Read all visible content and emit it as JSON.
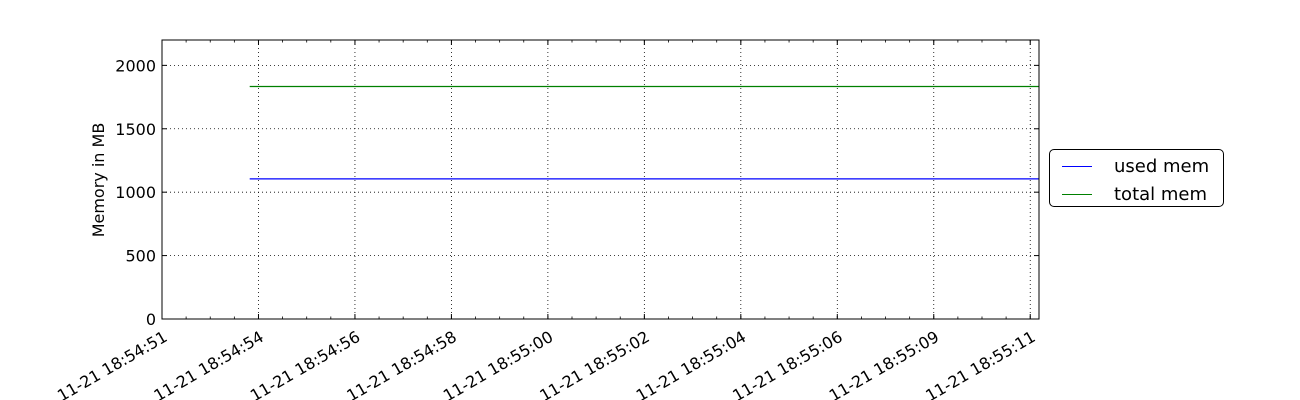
{
  "chart_data": {
    "type": "line",
    "title": "",
    "xlabel": "",
    "ylabel": "Memory in MB",
    "ylim": [
      0,
      2200
    ],
    "yticks": [
      0,
      500,
      1000,
      1500,
      2000
    ],
    "xlim": [
      "11-21 18:54:51",
      "11-21 18:55:11"
    ],
    "x_tick_labels": [
      "11-21 18:54:51",
      "11-21 18:54:54",
      "11-21 18:54:56",
      "11-21 18:54:58",
      "11-21 18:55:00",
      "11-21 18:55:02",
      "11-21 18:55:04",
      "11-21 18:55:06",
      "11-21 18:55:09",
      "11-21 18:55:11"
    ],
    "x_tick_seconds": [
      0,
      2.2,
      4.4,
      6.6,
      8.8,
      11,
      13.2,
      15.4,
      17.6,
      19.8
    ],
    "grid": true,
    "legend_position": "right",
    "series": [
      {
        "name": "used mem",
        "color": "#0000ff",
        "x": [
          "11-21 18:54:53",
          "11-21 18:55:11"
        ],
        "values": [
          1105,
          1105
        ]
      },
      {
        "name": "total mem",
        "color": "#008000",
        "x": [
          "11-21 18:54:53",
          "11-21 18:55:11"
        ],
        "values": [
          1833,
          1833
        ]
      }
    ]
  }
}
